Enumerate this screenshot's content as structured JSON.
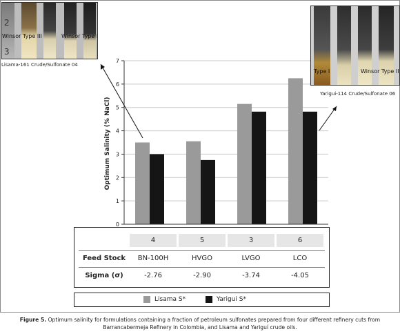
{
  "chart_data": {
    "type": "bar",
    "ylabel": "Optimum Salinity (% NaCl)",
    "ylim": [
      0,
      7
    ],
    "yticks": [
      0,
      1,
      2,
      3,
      4,
      5,
      6,
      7
    ],
    "grid": true,
    "series": [
      {
        "name": "Lisama S*",
        "color": "#9a9a9a",
        "values": [
          3.5,
          3.55,
          5.15,
          6.25
        ]
      },
      {
        "name": "Yarigui S*",
        "color": "#151515",
        "values": [
          3.0,
          2.75,
          4.82,
          4.82
        ]
      }
    ]
  },
  "table": {
    "columns": [
      "4",
      "5",
      "3",
      "6"
    ],
    "rows": [
      {
        "label": "Feed Stock",
        "values": [
          "BN-100H",
          "HVGO",
          "LVGO",
          "LCO"
        ]
      },
      {
        "label": "Sigma (σ)",
        "values": [
          "-2.76",
          "-2.90",
          "-3.74",
          "-4.05"
        ]
      }
    ]
  },
  "photos": {
    "left": {
      "labels": [
        "Winsor Type III",
        "Winsor Type II"
      ],
      "tube_numbers": [
        "2",
        "3"
      ],
      "caption": "Lisama-161 Crude/Sulfonate 04"
    },
    "right": {
      "labels": [
        "Type I",
        "Winsor Type III"
      ],
      "caption": "Yarigui-114 Crude/Sulfonate 06"
    }
  },
  "figure_caption": {
    "label": "Figure 5.",
    "text": "Optimum salinity for formulations containing a fraction of petroleum sulfonates prepared from four different refinery cuts from Barrancabermeja Refinery in Colombia, and Lisama and Yariguí crude oils."
  },
  "colors": {
    "lisama": "#9a9a9a",
    "yarigui": "#151515",
    "header_fill": "#e6e6e6"
  }
}
